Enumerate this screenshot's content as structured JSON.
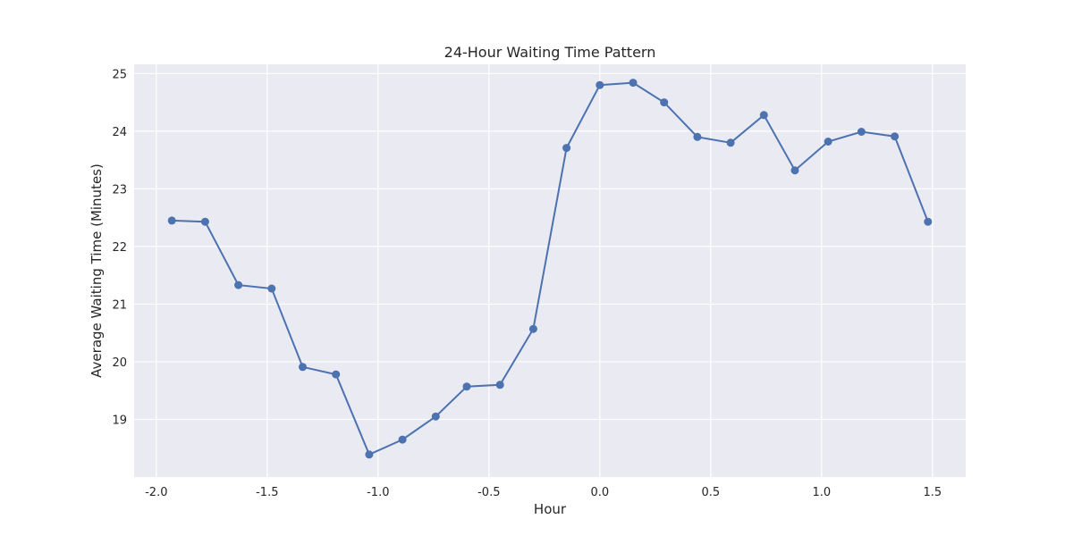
{
  "chart_data": {
    "type": "line",
    "title": "24-Hour Waiting Time Pattern",
    "xlabel": "Hour",
    "ylabel": "Average Waiting Time (Minutes)",
    "xlim": [
      -2.1,
      1.65
    ],
    "ylim": [
      18.0,
      25.16
    ],
    "xticks": [
      -2.0,
      -1.5,
      -1.0,
      -0.5,
      0.0,
      0.5,
      1.0,
      1.5
    ],
    "xtick_labels": [
      "-2.0",
      "-1.5",
      "-1.0",
      "-0.5",
      "0.0",
      "0.5",
      "1.0",
      "1.5"
    ],
    "yticks": [
      19,
      20,
      21,
      22,
      23,
      24,
      25
    ],
    "ytick_labels": [
      "19",
      "20",
      "21",
      "22",
      "23",
      "24",
      "25"
    ],
    "grid": true,
    "colors": {
      "background": "#eaeaf2",
      "grid": "#ffffff",
      "line": "#4c72b0"
    },
    "x": [
      -1.93,
      -1.78,
      -1.63,
      -1.48,
      -1.34,
      -1.19,
      -1.04,
      -0.89,
      -0.74,
      -0.6,
      -0.45,
      -0.3,
      -0.15,
      0.0,
      0.15,
      0.29,
      0.44,
      0.59,
      0.74,
      0.88,
      1.03,
      1.18,
      1.33,
      1.48
    ],
    "values": [
      22.45,
      22.43,
      21.33,
      21.27,
      19.91,
      19.78,
      18.39,
      18.65,
      19.05,
      19.57,
      19.6,
      20.57,
      23.71,
      24.8,
      24.84,
      24.5,
      23.9,
      23.8,
      24.28,
      23.32,
      23.82,
      23.99,
      23.91,
      22.43
    ]
  }
}
